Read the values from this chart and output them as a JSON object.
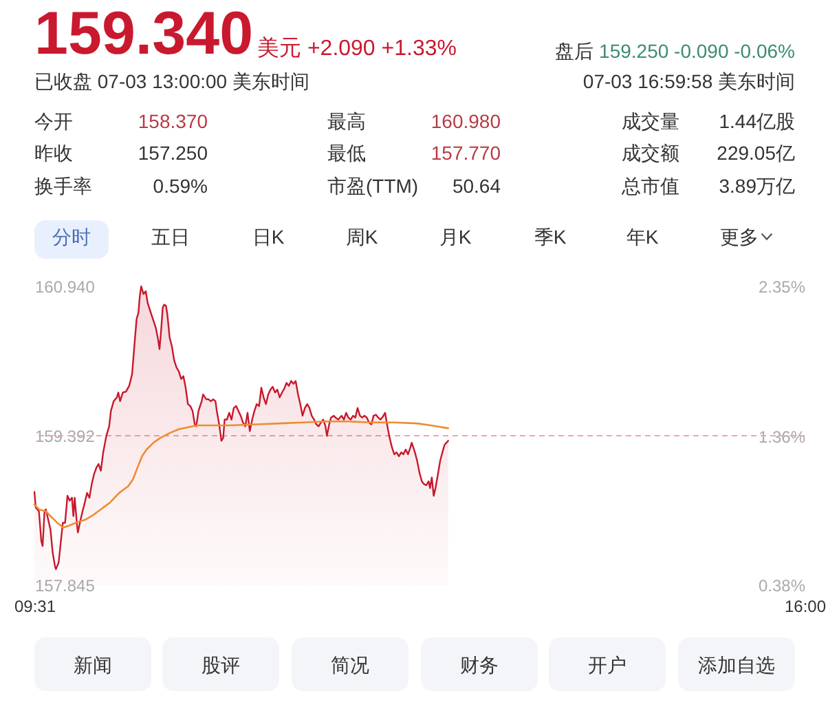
{
  "chart_data": [
    {
      "type": "other",
      "annotations": [
        "159.340",
        "美元 +2.090 +1.33%",
        "盘后",
        "159.250 -0.090 -0.06%",
        "已收盘 07-03 13:00:00 美东时间",
        "07-03 16:59:58 美东时间"
      ]
    },
    {
      "type": "other",
      "annotations": [
        "今开",
        "158.370",
        "最高",
        "160.980",
        "成交量",
        "1.44亿股",
        "昨收",
        "157.250",
        "最低",
        "157.770",
        "成交额",
        "229.05亿",
        "换手率",
        "0.59%",
        "市盈(TTM)",
        "50.64",
        "总市值",
        "3.89万亿"
      ]
    },
    {
      "type": "other",
      "annotations": [
        "分时",
        "五日",
        "日K",
        "周K",
        "月K",
        "季K",
        "年K",
        "更多"
      ]
    },
    {
      "type": "area",
      "xlim": [
        9.5167,
        16
      ],
      "xticks": [
        {
          "value": 9.5167,
          "label": "09:31"
        },
        {
          "value": 16,
          "label": "16:00"
        }
      ],
      "ylim": [
        157.845,
        160.94
      ],
      "yticks": [
        157.845,
        159.392,
        {
          "value": 160.94,
          "label": "160.940"
        }
      ],
      "y2lim": [
        0.38,
        2.35
      ],
      "y2ticks": [
        {
          "value": 0.38,
          "label": "0.38%"
        },
        {
          "value": 1.36,
          "label": "1.36%"
        },
        {
          "value": 2.35,
          "label": "2.35%"
        }
      ],
      "ref_lines": [
        {
          "axis": "y",
          "value": 159.392,
          "color": "#f2a5a5",
          "line_style": "dashed"
        }
      ],
      "series": [
        {
          "type": "area",
          "color": "#c8182c",
          "x": [
            9.517,
            9.528,
            9.555,
            9.575,
            9.586,
            9.602,
            9.613,
            9.632,
            9.652,
            9.671,
            9.69,
            9.698,
            9.721,
            9.737,
            9.756,
            9.775,
            9.795,
            9.814,
            9.833,
            9.845,
            9.856,
            9.876,
            9.883,
            9.903,
            9.922,
            9.941,
            9.96,
            9.98,
            9.999,
            10.018,
            10.038,
            10.057,
            10.076,
            10.096,
            10.122,
            10.146,
            10.161,
            10.184,
            10.211,
            10.223,
            10.238,
            10.261,
            10.288,
            10.315,
            10.339,
            10.358,
            10.377,
            10.393,
            10.404,
            10.416,
            10.435,
            10.454,
            10.47,
            10.501,
            10.52,
            10.539,
            10.558,
            10.57,
            10.585,
            10.597,
            10.609,
            10.624,
            10.636,
            10.655,
            10.674,
            10.694,
            10.713,
            10.732,
            10.752,
            10.771,
            10.79,
            10.809,
            10.829,
            10.848,
            10.867,
            10.879,
            10.898,
            10.925,
            10.937,
            10.964,
            10.983,
            11.002,
            11.022,
            11.041,
            11.052,
            11.072,
            11.091,
            11.106,
            11.118,
            11.137,
            11.157,
            11.176,
            11.195,
            11.215,
            11.234,
            11.253,
            11.272,
            11.292,
            11.311,
            11.33,
            11.35,
            11.369,
            11.388,
            11.408,
            11.427,
            11.446,
            11.466,
            11.485,
            11.504,
            11.523,
            11.543,
            11.562,
            11.581,
            11.601,
            11.62,
            11.639,
            11.658,
            11.678,
            11.697,
            11.716,
            11.736,
            11.755,
            11.774,
            11.794,
            11.813,
            11.832,
            11.851,
            11.871,
            11.89,
            11.909,
            11.929,
            11.948,
            11.967,
            11.979,
            11.998,
            12.013,
            12.037,
            12.052,
            12.075,
            12.102,
            12.122,
            12.141,
            12.16,
            12.179,
            12.199,
            12.218,
            12.237,
            12.257,
            12.276,
            12.295,
            12.315,
            12.334,
            12.353,
            12.372,
            12.392,
            12.411,
            12.43,
            12.45,
            12.469,
            12.488,
            12.507,
            12.527,
            12.546,
            12.565,
            12.585,
            12.604,
            12.623,
            12.642,
            12.662,
            12.681,
            12.693,
            12.72,
            12.739,
            12.758,
            12.778,
            12.797,
            12.816,
            12.835,
            12.847,
            12.862,
            12.878,
            12.893,
            12.913,
            12.932,
            12.951,
            12.97,
            13.0
          ],
          "values": [
            158.81,
            158.65,
            158.61,
            158.3,
            158.25,
            158.61,
            158.63,
            158.53,
            158.42,
            158.18,
            158.04,
            158.01,
            158.08,
            158.27,
            158.49,
            158.49,
            158.77,
            158.72,
            158.75,
            158.56,
            158.75,
            158.46,
            158.39,
            158.51,
            158.61,
            158.7,
            158.8,
            158.75,
            158.89,
            158.99,
            159.06,
            159.1,
            159.03,
            159.22,
            159.39,
            159.49,
            159.65,
            159.75,
            159.79,
            159.84,
            159.75,
            159.84,
            159.85,
            159.91,
            160.03,
            160.32,
            160.6,
            160.67,
            160.84,
            160.94,
            160.86,
            160.89,
            160.77,
            160.65,
            160.58,
            160.51,
            160.39,
            160.29,
            160.51,
            160.72,
            160.75,
            160.74,
            160.65,
            160.41,
            160.32,
            160.17,
            160.1,
            160.06,
            159.98,
            160.01,
            159.89,
            159.72,
            159.7,
            159.65,
            159.51,
            159.49,
            159.65,
            159.75,
            159.82,
            159.77,
            159.77,
            159.75,
            159.77,
            159.75,
            159.65,
            159.51,
            159.34,
            159.37,
            159.56,
            159.56,
            159.63,
            159.56,
            159.68,
            159.7,
            159.65,
            159.6,
            159.53,
            159.49,
            159.63,
            159.44,
            159.56,
            159.65,
            159.72,
            159.7,
            159.89,
            159.79,
            159.72,
            159.82,
            159.87,
            159.9,
            159.84,
            159.87,
            159.79,
            159.84,
            159.88,
            159.94,
            159.91,
            159.96,
            159.93,
            159.96,
            159.82,
            159.72,
            159.6,
            159.68,
            159.72,
            159.68,
            159.6,
            159.56,
            159.51,
            159.49,
            159.53,
            159.56,
            159.49,
            159.39,
            159.51,
            159.58,
            159.6,
            159.58,
            159.56,
            159.6,
            159.56,
            159.63,
            159.58,
            159.56,
            159.6,
            159.58,
            159.68,
            159.6,
            159.58,
            159.6,
            159.58,
            159.53,
            159.51,
            159.6,
            159.61,
            159.58,
            159.56,
            159.59,
            159.63,
            159.49,
            159.37,
            159.27,
            159.2,
            159.22,
            159.18,
            159.22,
            159.2,
            159.25,
            159.2,
            159.27,
            159.32,
            159.22,
            159.13,
            159.01,
            158.92,
            158.89,
            158.88,
            158.92,
            158.85,
            158.96,
            158.77,
            158.85,
            158.99,
            159.13,
            159.22,
            159.3,
            159.34
          ]
        },
        {
          "type": "line",
          "color": "#ef8c2f",
          "x": [
            9.517,
            9.555,
            9.613,
            9.652,
            9.71,
            9.76,
            9.806,
            9.883,
            9.941,
            9.999,
            10.076,
            10.153,
            10.23,
            10.307,
            10.346,
            10.384,
            10.423,
            10.461,
            10.519,
            10.577,
            10.655,
            10.732,
            10.809,
            10.886,
            11.002,
            11.157,
            11.388,
            11.581,
            11.774,
            11.967,
            12.16,
            12.353,
            12.546,
            12.739,
            12.855,
            13.0
          ],
          "values": [
            158.68,
            158.63,
            158.61,
            158.56,
            158.49,
            158.44,
            158.46,
            158.5,
            158.52,
            158.56,
            158.63,
            158.7,
            158.8,
            158.87,
            158.94,
            159.06,
            159.18,
            159.25,
            159.32,
            159.37,
            159.42,
            159.46,
            159.48,
            159.5,
            159.5,
            159.5,
            159.51,
            159.52,
            159.53,
            159.54,
            159.54,
            159.53,
            159.53,
            159.52,
            159.5,
            159.47
          ]
        }
      ]
    },
    {
      "type": "other",
      "annotations": [
        "新闻",
        "股评",
        "简况",
        "财务",
        "开户",
        "添加自选"
      ]
    }
  ]
}
